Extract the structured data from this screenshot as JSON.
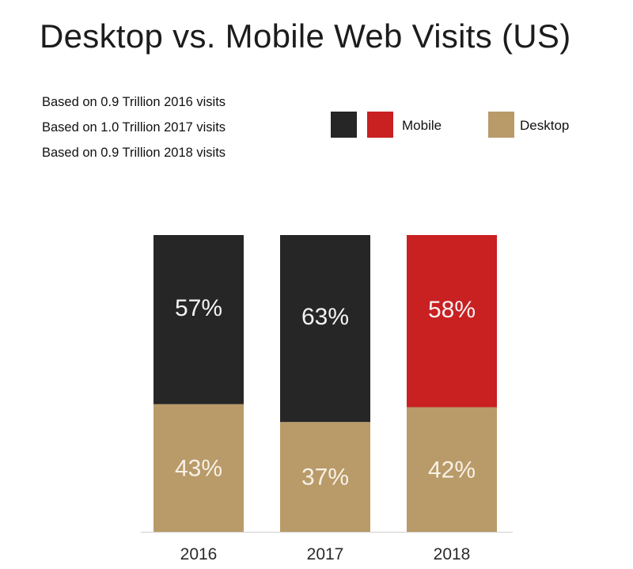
{
  "title": "Desktop vs. Mobile Web Visits (US)",
  "notes": [
    "Based on 0.9 Trillion 2016 visits",
    "Based on 1.0 Trillion 2017 visits",
    "Based on 0.9 Trillion 2018 visits"
  ],
  "legend": [
    {
      "label": "",
      "color": "#262626"
    },
    {
      "label": "Mobile",
      "color": "#c92022"
    },
    {
      "label": "Desktop",
      "color": "#b99a69"
    }
  ],
  "chart_data": {
    "type": "bar",
    "stacked": true,
    "categories": [
      "2016",
      "2017",
      "2018"
    ],
    "series": [
      {
        "name": "Desktop",
        "values": [
          43,
          37,
          42
        ],
        "labels": [
          "43%",
          "37%",
          "42%"
        ],
        "color": "#b99a69"
      },
      {
        "name": "Mobile",
        "values": [
          57,
          63,
          58
        ],
        "labels": [
          "57%",
          "63%",
          "58%"
        ],
        "colors": [
          "#262626",
          "#262626",
          "#c92022"
        ]
      }
    ],
    "title": "Desktop vs. Mobile Web Visits (US)",
    "xlabel": "",
    "ylabel": "",
    "ylim": [
      0,
      100
    ],
    "grid": false,
    "legend_position": "top-right"
  }
}
